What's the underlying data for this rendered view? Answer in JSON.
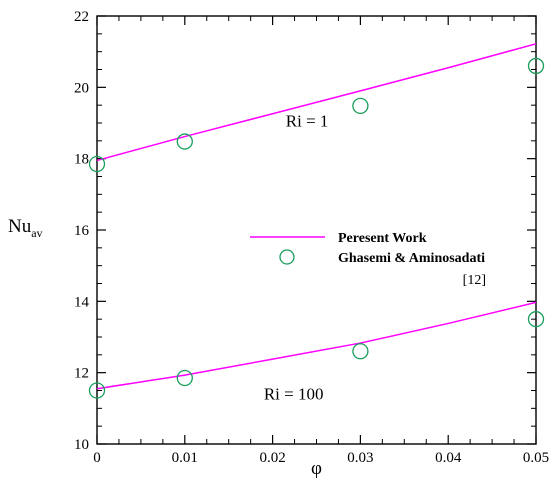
{
  "chart_data": {
    "type": "line",
    "xlabel": "φ",
    "ylabel_main": "Nu",
    "ylabel_sub": "av",
    "xlim": [
      0,
      0.05
    ],
    "ylim": [
      10,
      22
    ],
    "x_ticks": [
      0,
      0.01,
      0.02,
      0.03,
      0.04,
      0.05
    ],
    "x_tick_labels": [
      "0",
      "0.01",
      "0.02",
      "0.03",
      "0.04",
      "0.05"
    ],
    "y_ticks": [
      10,
      12,
      14,
      16,
      18,
      20,
      22
    ],
    "y_tick_labels": [
      "10",
      "12",
      "14",
      "16",
      "18",
      "20",
      "22"
    ],
    "grid": false,
    "legend_position": "center-right",
    "legend": {
      "line_label": "Peresent Work",
      "marker_label": "Ghasemi & Aminosadati",
      "reference": "[12]"
    },
    "colors": {
      "line": "#ff00ff",
      "marker": "#1a9e5c"
    },
    "series": [
      {
        "name": "Peresent Work",
        "group": "Ri = 1",
        "kind": "line",
        "x": [
          0,
          0.01,
          0.02,
          0.03,
          0.04,
          0.05
        ],
        "y": [
          17.95,
          18.62,
          19.26,
          19.9,
          20.55,
          21.22
        ]
      },
      {
        "name": "Ghasemi & Aminosadati",
        "group": "Ri = 1",
        "kind": "marker",
        "x": [
          0,
          0.01,
          0.03,
          0.05
        ],
        "y": [
          17.85,
          18.48,
          19.48,
          20.6
        ]
      },
      {
        "name": "Peresent Work",
        "group": "Ri = 100",
        "kind": "line",
        "x": [
          0,
          0.01,
          0.02,
          0.03,
          0.04,
          0.05
        ],
        "y": [
          11.55,
          11.93,
          12.38,
          12.83,
          13.38,
          13.97
        ]
      },
      {
        "name": "Ghasemi & Aminosadati",
        "group": "Ri = 100",
        "kind": "marker",
        "x": [
          0,
          0.01,
          0.03,
          0.05
        ],
        "y": [
          11.5,
          11.85,
          12.6,
          13.5
        ]
      }
    ],
    "annotations": [
      {
        "text": "Ri = 1",
        "x": 0.0215,
        "y": 18.9
      },
      {
        "text": "Ri = 100",
        "x": 0.019,
        "y": 11.25
      }
    ]
  }
}
